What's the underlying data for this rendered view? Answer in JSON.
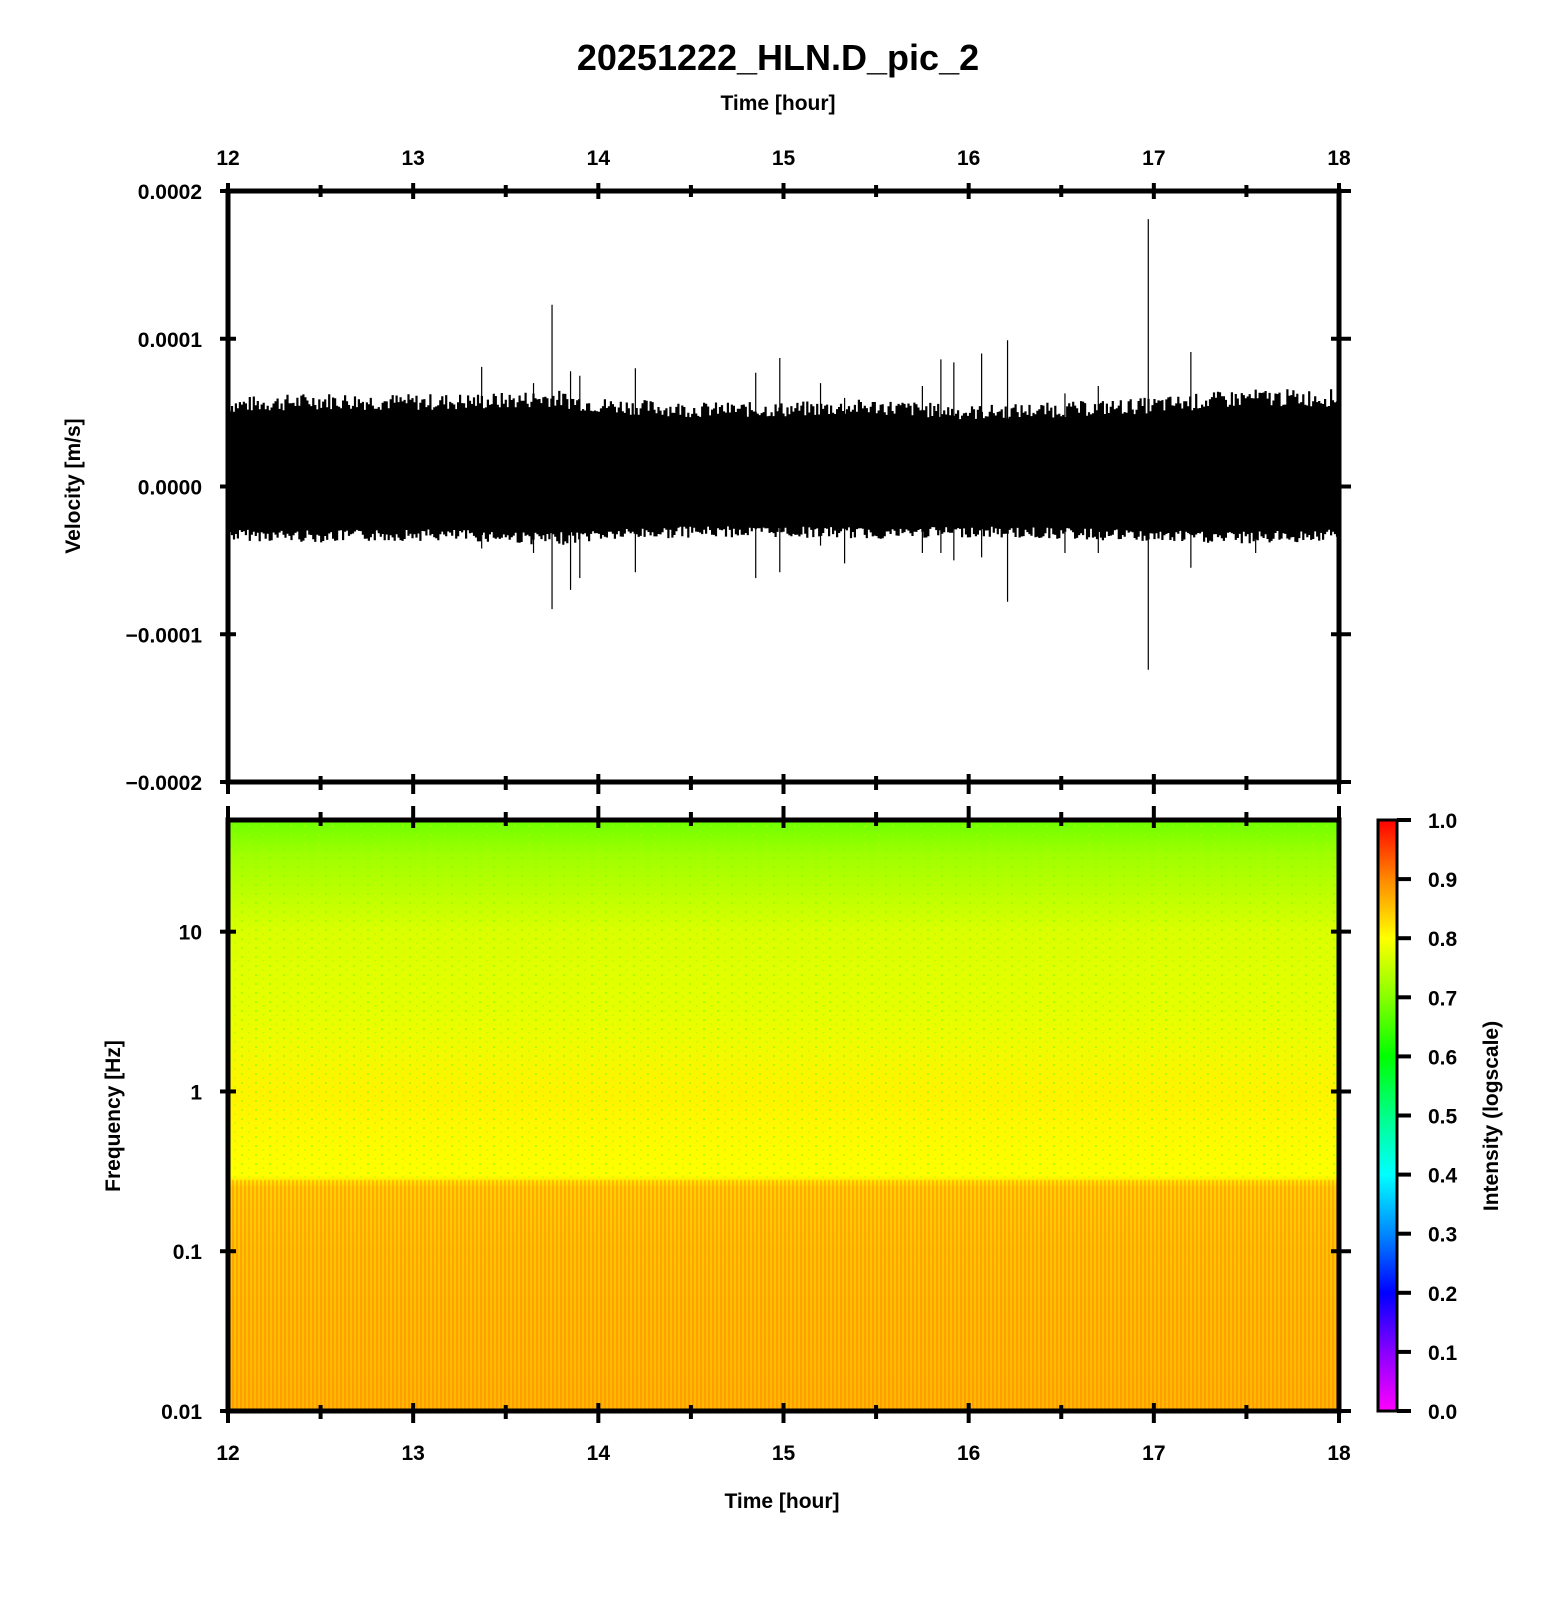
{
  "title": "20251222_HLN.D_pic_2",
  "colors": {
    "trace": "#000000",
    "frame": "#000000",
    "colormap": [
      "#ff00ff",
      "#8800ff",
      "#0000ff",
      "#0088ff",
      "#00ffff",
      "#00ff88",
      "#00ff00",
      "#88ff00",
      "#ffff00",
      "#ff8800",
      "#ff0000"
    ]
  },
  "chart_data": [
    {
      "type": "line",
      "name": "waveform",
      "xlabel": "Time [hour]",
      "ylabel": "Velocity [m/s]",
      "xlim": [
        12,
        18
      ],
      "ylim": [
        -0.0002,
        0.0002
      ],
      "x_ticks": [
        12,
        13,
        14,
        15,
        16,
        17,
        18
      ],
      "x_tick_labels": [
        "12",
        "13",
        "14",
        "15",
        "16",
        "17",
        "18"
      ],
      "y_ticks": [
        0.0002,
        0.0001,
        0.0,
        -0.0001,
        -0.0002
      ],
      "y_tick_labels": [
        "0.0002",
        "0.0001",
        "0.0000",
        "−0.0001",
        "−0.0002"
      ],
      "x_axis_position": "top",
      "grid": false,
      "noise_band": {
        "x": [
          12.0,
          12.5,
          13.0,
          13.5,
          13.75,
          14.0,
          14.5,
          15.0,
          15.5,
          16.0,
          16.5,
          17.0,
          17.5,
          18.0
        ],
        "upper": [
          5.5e-05,
          5.8e-05,
          5.7e-05,
          5.8e-05,
          6e-05,
          5.5e-05,
          5.2e-05,
          5.2e-05,
          5.4e-05,
          5e-05,
          5.2e-05,
          5.5e-05,
          6e-05,
          6e-05
        ],
        "lower": [
          -3.2e-05,
          -3.3e-05,
          -3.2e-05,
          -3.3e-05,
          -3.5e-05,
          -3.2e-05,
          -3e-05,
          -3e-05,
          -3.1e-05,
          -3e-05,
          -3.1e-05,
          -3.3e-05,
          -3.4e-05,
          -3.2e-05
        ]
      },
      "spikes": [
        {
          "x": 13.37,
          "max": 8.1e-05,
          "min": -4.2e-05
        },
        {
          "x": 13.65,
          "max": 7e-05,
          "min": -4.5e-05
        },
        {
          "x": 13.75,
          "max": 0.000123,
          "min": -8.3e-05
        },
        {
          "x": 13.85,
          "max": 7.8e-05,
          "min": -7e-05
        },
        {
          "x": 13.9,
          "max": 7.5e-05,
          "min": -6.2e-05
        },
        {
          "x": 14.2,
          "max": 8e-05,
          "min": -5.8e-05
        },
        {
          "x": 14.85,
          "max": 7.7e-05,
          "min": -6.2e-05
        },
        {
          "x": 14.98,
          "max": 8.7e-05,
          "min": -5.8e-05
        },
        {
          "x": 15.2,
          "max": 7e-05,
          "min": -4e-05
        },
        {
          "x": 15.33,
          "max": 6e-05,
          "min": -5.2e-05
        },
        {
          "x": 15.75,
          "max": 6.8e-05,
          "min": -4.5e-05
        },
        {
          "x": 15.85,
          "max": 8.6e-05,
          "min": -4.5e-05
        },
        {
          "x": 15.92,
          "max": 8.4e-05,
          "min": -5e-05
        },
        {
          "x": 16.07,
          "max": 9e-05,
          "min": -4.8e-05
        },
        {
          "x": 16.21,
          "max": 9.9e-05,
          "min": -7.8e-05
        },
        {
          "x": 16.52,
          "max": 6.3e-05,
          "min": -4.5e-05
        },
        {
          "x": 16.7,
          "max": 6.8e-05,
          "min": -4.5e-05
        },
        {
          "x": 16.97,
          "max": 0.000181,
          "min": -0.000124
        },
        {
          "x": 17.2,
          "max": 9.1e-05,
          "min": -5.5e-05
        },
        {
          "x": 17.55,
          "max": 6.5e-05,
          "min": -4.5e-05
        },
        {
          "x": 17.99,
          "max": 8.5e-05,
          "min": -4.5e-05
        }
      ]
    },
    {
      "type": "heatmap",
      "name": "spectrogram",
      "xlabel": "Time [hour]",
      "ylabel": "Frequency [Hz]",
      "xlim": [
        12,
        18
      ],
      "ylim": [
        0.01,
        50
      ],
      "y_scale": "log",
      "x_ticks": [
        12,
        13,
        14,
        15,
        16,
        17,
        18
      ],
      "x_tick_labels": [
        "12",
        "13",
        "14",
        "15",
        "16",
        "17",
        "18"
      ],
      "y_ticks": [
        0.01,
        0.1,
        1,
        10
      ],
      "y_tick_labels": [
        "0.01",
        "0.1",
        "1",
        "10"
      ],
      "intensity_profile": {
        "freq_hz": [
          0.01,
          0.1,
          0.25,
          0.3,
          1,
          3,
          10,
          30,
          50
        ],
        "intensity": [
          0.86,
          0.85,
          0.84,
          0.8,
          0.81,
          0.78,
          0.77,
          0.72,
          0.68
        ]
      },
      "colorbar": {
        "label": "Intensity (logscale)",
        "range": [
          0.0,
          1.0
        ],
        "ticks": [
          0.0,
          0.1,
          0.2,
          0.3,
          0.4,
          0.5,
          0.6,
          0.7,
          0.8,
          0.9,
          1.0
        ],
        "tick_labels": [
          "0.0",
          "0.1",
          "0.2",
          "0.3",
          "0.4",
          "0.5",
          "0.6",
          "0.7",
          "0.8",
          "0.9",
          "1.0"
        ]
      }
    }
  ]
}
